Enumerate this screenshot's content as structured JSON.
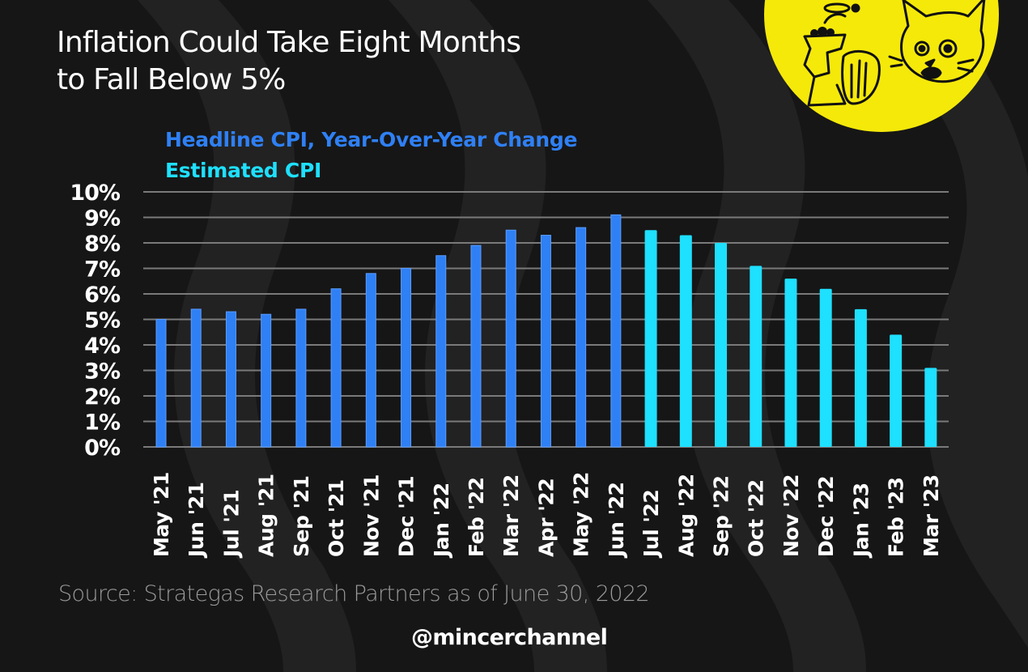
{
  "title_lines": [
    "Inflation Could Take Eight Months",
    "to Fall Below 5%"
  ],
  "source": "Source: Strategas Research Partners as of June 30, 2022",
  "handle": "@mincerchannel",
  "logo": {
    "icon": "meat-grinder-and-cat-logo",
    "color": "#f5e90a"
  },
  "colors": {
    "background": "#161616",
    "headline": "#2f80f5",
    "estimated": "#1ee0ff",
    "gridline": "#7a7a7a",
    "axis_text": "#ffffff"
  },
  "chart_data": {
    "type": "bar",
    "title": "Inflation Could Take Eight Months to Fall Below 5%",
    "xlabel": "",
    "ylabel": "",
    "ylim": [
      0,
      10
    ],
    "yticks": [
      "0%",
      "1%",
      "2%",
      "3%",
      "4%",
      "5%",
      "6%",
      "7%",
      "8%",
      "9%",
      "10%"
    ],
    "grid": true,
    "legend_placement": "top-left",
    "categories": [
      "May '21",
      "Jun '21",
      "Jul '21",
      "Aug '21",
      "Sep '21",
      "Oct '21",
      "Nov '21",
      "Dec '21",
      "Jan '22",
      "Feb '22",
      "Mar '22",
      "Apr '22",
      "May '22",
      "Jun '22",
      "Jul '22",
      "Aug '22",
      "Sep '22",
      "Oct '22",
      "Nov '22",
      "Dec '22",
      "Jan '23",
      "Feb '23",
      "Mar '23"
    ],
    "series": [
      {
        "name": "Headline CPI, Year-Over-Year Change",
        "color": "#2f80f5",
        "values": [
          5.0,
          5.4,
          5.3,
          5.2,
          5.4,
          6.2,
          6.8,
          7.0,
          7.5,
          7.9,
          8.5,
          8.3,
          8.6,
          9.1,
          null,
          null,
          null,
          null,
          null,
          null,
          null,
          null,
          null
        ]
      },
      {
        "name": "Estimated CPI",
        "color": "#1ee0ff",
        "values": [
          null,
          null,
          null,
          null,
          null,
          null,
          null,
          null,
          null,
          null,
          null,
          null,
          null,
          null,
          8.5,
          8.3,
          8.0,
          7.1,
          6.6,
          6.2,
          5.4,
          4.4,
          3.1
        ]
      }
    ]
  }
}
